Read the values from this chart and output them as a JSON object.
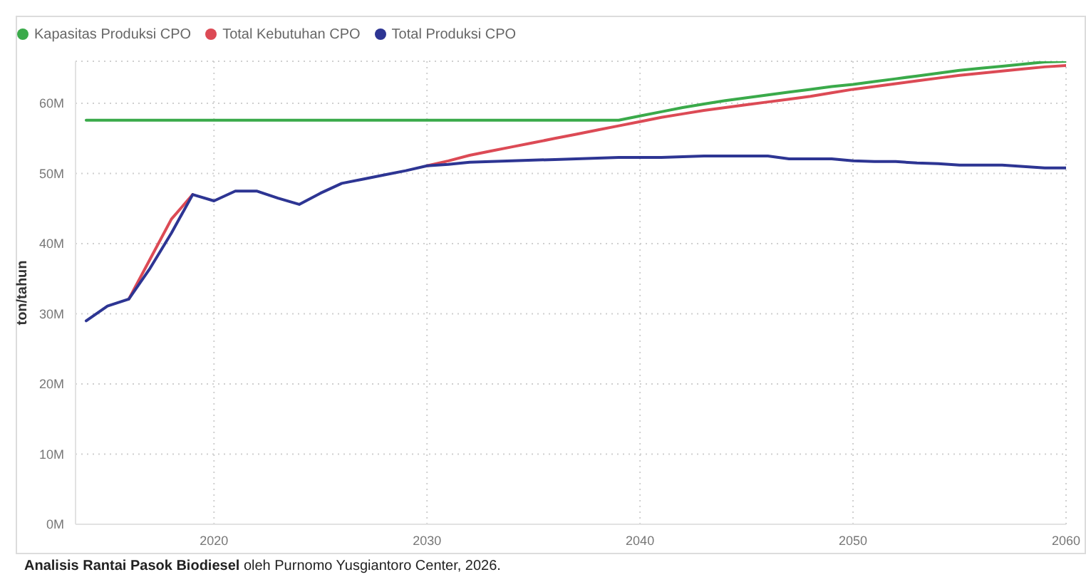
{
  "chart_data": {
    "type": "line",
    "ylabel": "ton/tahun",
    "annotations": [
      "Analisis Rantai Pasok Biodiesel",
      "oleh Purnomo Yusgiantoro Center, 2026."
    ],
    "x": [
      2014,
      2015,
      2016,
      2017,
      2018,
      2019,
      2020,
      2021,
      2022,
      2023,
      2024,
      2025,
      2026,
      2027,
      2028,
      2029,
      2030,
      2031,
      2032,
      2033,
      2034,
      2035,
      2036,
      2037,
      2038,
      2039,
      2040,
      2041,
      2042,
      2043,
      2044,
      2045,
      2046,
      2047,
      2048,
      2049,
      2050,
      2051,
      2052,
      2053,
      2054,
      2055,
      2056,
      2057,
      2058,
      2059,
      2060
    ],
    "series": [
      {
        "name": "Kapasitas Produksi CPO",
        "color": "#3aaa4a",
        "values": [
          57600000,
          57600000,
          57600000,
          57600000,
          57600000,
          57600000,
          57600000,
          57600000,
          57600000,
          57600000,
          57600000,
          57600000,
          57600000,
          57600000,
          57600000,
          57600000,
          57600000,
          57600000,
          57600000,
          57600000,
          57600000,
          57600000,
          57600000,
          57600000,
          57600000,
          57600000,
          58200000,
          58800000,
          59400000,
          59900000,
          60400000,
          60800000,
          61200000,
          61600000,
          62000000,
          62400000,
          62700000,
          63100000,
          63500000,
          63900000,
          64300000,
          64700000,
          65000000,
          65300000,
          65600000,
          65900000,
          66000000
        ]
      },
      {
        "name": "Total Kebutuhan CPO",
        "color": "#dc4a55",
        "values": [
          null,
          null,
          32100000,
          37800000,
          43500000,
          47000000,
          null,
          null,
          null,
          null,
          null,
          null,
          null,
          null,
          null,
          null,
          51100000,
          51800000,
          52600000,
          53200000,
          53800000,
          54400000,
          55000000,
          55600000,
          56200000,
          56800000,
          57400000,
          58000000,
          58500000,
          59000000,
          59400000,
          59800000,
          60200000,
          60600000,
          61000000,
          61500000,
          62000000,
          62400000,
          62800000,
          63200000,
          63600000,
          64000000,
          64300000,
          64600000,
          64900000,
          65200000,
          65400000
        ]
      },
      {
        "name": "Total Produksi CPO",
        "color": "#2d3593",
        "values": [
          29000000,
          31100000,
          32100000,
          36500000,
          41500000,
          47000000,
          46100000,
          47500000,
          47500000,
          46500000,
          45600000,
          47200000,
          48600000,
          49200000,
          49800000,
          50400000,
          51100000,
          51300000,
          51600000,
          51700000,
          51800000,
          51900000,
          52000000,
          52100000,
          52200000,
          52300000,
          52300000,
          52300000,
          52400000,
          52500000,
          52500000,
          52500000,
          52500000,
          52100000,
          52100000,
          52100000,
          51800000,
          51700000,
          51700000,
          51500000,
          51400000,
          51200000,
          51200000,
          51200000,
          51000000,
          50800000,
          50800000
        ]
      }
    ],
    "xlim": [
      2013.5,
      2060
    ],
    "xticks": [
      2020,
      2030,
      2040,
      2050,
      2060
    ],
    "ylim": [
      0,
      66000000
    ],
    "yticks": [
      {
        "value": 0,
        "label": "0M"
      },
      {
        "value": 10000000,
        "label": "10M"
      },
      {
        "value": 20000000,
        "label": "20M"
      },
      {
        "value": 30000000,
        "label": "30M"
      },
      {
        "value": 40000000,
        "label": "40M"
      },
      {
        "value": 50000000,
        "label": "50M"
      },
      {
        "value": 60000000,
        "label": "60M"
      }
    ],
    "grid": true,
    "legend": "top left",
    "marker": "none",
    "line_style": "solid"
  }
}
